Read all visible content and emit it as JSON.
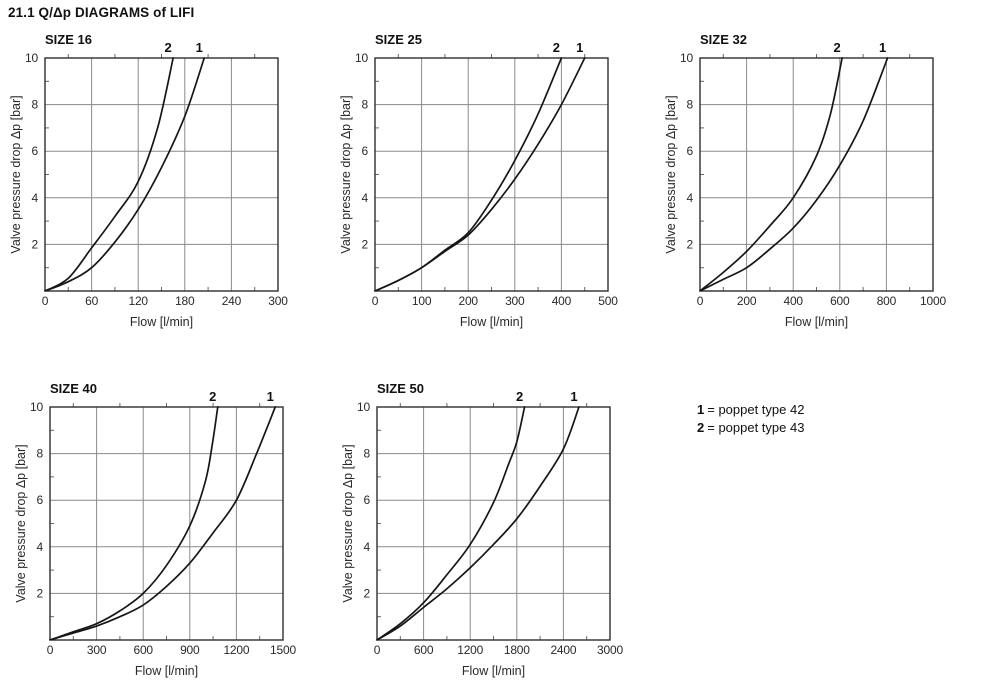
{
  "page": {
    "title": "21.1 Q/Δp DIAGRAMS of LIFI"
  },
  "legend": {
    "items": [
      {
        "key": "1",
        "text": "= poppet type 42"
      },
      {
        "key": "2",
        "text": "= poppet type 43"
      }
    ]
  },
  "chart_data": [
    {
      "type": "line",
      "title": "SIZE 16",
      "xlabel": "Flow [l/min]",
      "ylabel": "Valve pressure drop Δp [bar]",
      "xlim": [
        0,
        300
      ],
      "ylim": [
        0,
        10
      ],
      "x_ticks": [
        0,
        60,
        120,
        180,
        240,
        300
      ],
      "y_ticks": [
        0,
        2,
        4,
        6,
        8,
        10
      ],
      "grid": true,
      "legend_position": "none",
      "series": [
        {
          "name": "1",
          "points": [
            [
              0,
              0
            ],
            [
              30,
              0.4
            ],
            [
              60,
              1.0
            ],
            [
              90,
              2.1
            ],
            [
              120,
              3.5
            ],
            [
              150,
              5.3
            ],
            [
              180,
              7.5
            ],
            [
              205,
              10
            ]
          ]
        },
        {
          "name": "2",
          "points": [
            [
              0,
              0
            ],
            [
              30,
              0.55
            ],
            [
              60,
              1.85
            ],
            [
              90,
              3.2
            ],
            [
              120,
              4.7
            ],
            [
              145,
              7.0
            ],
            [
              165,
              10
            ]
          ]
        }
      ]
    },
    {
      "type": "line",
      "title": "SIZE 25",
      "xlabel": "Flow [l/min]",
      "ylabel": "Valve pressure drop Δp [bar]",
      "xlim": [
        0,
        500
      ],
      "ylim": [
        0,
        10
      ],
      "x_ticks": [
        0,
        100,
        200,
        300,
        400,
        500
      ],
      "y_ticks": [
        0,
        2,
        4,
        6,
        8,
        10
      ],
      "grid": true,
      "legend_position": "none",
      "series": [
        {
          "name": "1",
          "points": [
            [
              0,
              0
            ],
            [
              50,
              0.45
            ],
            [
              100,
              1.0
            ],
            [
              150,
              1.7
            ],
            [
              200,
              2.4
            ],
            [
              250,
              3.5
            ],
            [
              300,
              4.8
            ],
            [
              350,
              6.3
            ],
            [
              400,
              8.0
            ],
            [
              450,
              10
            ]
          ]
        },
        {
          "name": "2",
          "points": [
            [
              0,
              0
            ],
            [
              50,
              0.45
            ],
            [
              100,
              1.0
            ],
            [
              150,
              1.75
            ],
            [
              200,
              2.5
            ],
            [
              250,
              3.9
            ],
            [
              300,
              5.6
            ],
            [
              350,
              7.6
            ],
            [
              400,
              10
            ]
          ]
        }
      ]
    },
    {
      "type": "line",
      "title": "SIZE 32",
      "xlabel": "Flow [l/min]",
      "ylabel": "Valve pressure drop Δp [bar]",
      "xlim": [
        0,
        1000
      ],
      "ylim": [
        0,
        10
      ],
      "x_ticks": [
        0,
        200,
        400,
        600,
        800,
        1000
      ],
      "y_ticks": [
        0,
        2,
        4,
        6,
        8,
        10
      ],
      "grid": true,
      "legend_position": "none",
      "series": [
        {
          "name": "1",
          "points": [
            [
              0,
              0
            ],
            [
              100,
              0.5
            ],
            [
              200,
              1.0
            ],
            [
              300,
              1.8
            ],
            [
              400,
              2.7
            ],
            [
              500,
              3.9
            ],
            [
              600,
              5.4
            ],
            [
              700,
              7.3
            ],
            [
              805,
              10
            ]
          ]
        },
        {
          "name": "2",
          "points": [
            [
              0,
              0
            ],
            [
              100,
              0.8
            ],
            [
              200,
              1.7
            ],
            [
              300,
              2.8
            ],
            [
              400,
              4.0
            ],
            [
              500,
              5.8
            ],
            [
              560,
              7.6
            ],
            [
              610,
              10
            ]
          ]
        }
      ]
    },
    {
      "type": "line",
      "title": "SIZE 40",
      "xlabel": "Flow [l/min]",
      "ylabel": "Valve pressure drop Δp [bar]",
      "xlim": [
        0,
        1500
      ],
      "ylim": [
        0,
        10
      ],
      "x_ticks": [
        0,
        300,
        600,
        900,
        1200,
        1500
      ],
      "y_ticks": [
        0,
        2,
        4,
        6,
        8,
        10
      ],
      "grid": true,
      "legend_position": "none",
      "series": [
        {
          "name": "1",
          "points": [
            [
              0,
              0
            ],
            [
              150,
              0.3
            ],
            [
              300,
              0.6
            ],
            [
              450,
              1.0
            ],
            [
              600,
              1.5
            ],
            [
              750,
              2.3
            ],
            [
              900,
              3.3
            ],
            [
              1050,
              4.6
            ],
            [
              1200,
              6.0
            ],
            [
              1330,
              8.0
            ],
            [
              1450,
              10
            ]
          ]
        },
        {
          "name": "2",
          "points": [
            [
              0,
              0
            ],
            [
              150,
              0.35
            ],
            [
              300,
              0.7
            ],
            [
              450,
              1.25
            ],
            [
              600,
              2.0
            ],
            [
              750,
              3.2
            ],
            [
              900,
              4.9
            ],
            [
              1000,
              6.8
            ],
            [
              1045,
              8.4
            ],
            [
              1080,
              10
            ]
          ]
        }
      ]
    },
    {
      "type": "line",
      "title": "SIZE 50",
      "xlabel": "Flow [l/min]",
      "ylabel": "Valve pressure drop Δp [bar]",
      "xlim": [
        0,
        3000
      ],
      "ylim": [
        0,
        10
      ],
      "x_ticks": [
        0,
        600,
        1200,
        1800,
        2400,
        3000
      ],
      "y_ticks": [
        0,
        2,
        4,
        6,
        8,
        10
      ],
      "grid": true,
      "legend_position": "none",
      "series": [
        {
          "name": "1",
          "points": [
            [
              0,
              0
            ],
            [
              300,
              0.6
            ],
            [
              600,
              1.4
            ],
            [
              900,
              2.2
            ],
            [
              1200,
              3.1
            ],
            [
              1500,
              4.1
            ],
            [
              1800,
              5.2
            ],
            [
              2100,
              6.6
            ],
            [
              2400,
              8.2
            ],
            [
              2600,
              10
            ]
          ]
        },
        {
          "name": "2",
          "points": [
            [
              0,
              0
            ],
            [
              300,
              0.7
            ],
            [
              600,
              1.6
            ],
            [
              900,
              2.8
            ],
            [
              1200,
              4.1
            ],
            [
              1500,
              5.9
            ],
            [
              1700,
              7.6
            ],
            [
              1800,
              8.5
            ],
            [
              1900,
              10
            ]
          ]
        }
      ]
    }
  ]
}
